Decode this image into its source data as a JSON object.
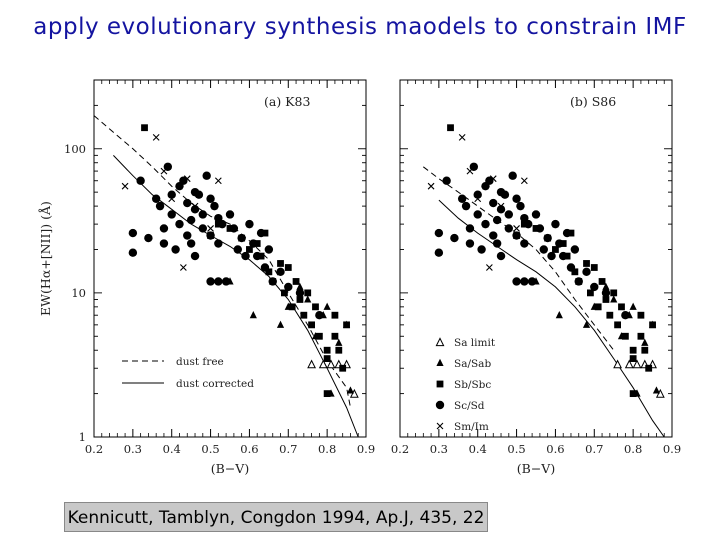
{
  "slide": {
    "title": "apply evolutionary synthesis maodels to constrain IMF",
    "citation": "Kennicutt, Tamblyn, Congdon 1994, Ap.J, 435, 22"
  },
  "chart_data": [
    {
      "type": "scatter",
      "panel_label": "(a)   K83",
      "xlabel": "(B−V)",
      "ylabel": "EW(Hα+[NII])  (Å)",
      "xlim": [
        0.2,
        0.9
      ],
      "ylim": [
        1,
        300
      ],
      "y_scale": "log",
      "x_ticks": [
        "0.2",
        "0.3",
        "0.4",
        "0.5",
        "0.6",
        "0.7",
        "0.8",
        "0.9"
      ],
      "y_ticks": [
        "1",
        "10",
        "100"
      ],
      "legend_entries": [
        "dust free",
        "dust corrected"
      ],
      "lines": [
        {
          "name": "dust free",
          "style": "dashed",
          "x": [
            0.2,
            0.25,
            0.3,
            0.35,
            0.4,
            0.45,
            0.5,
            0.55,
            0.6,
            0.65,
            0.7,
            0.75,
            0.8,
            0.85,
            0.86
          ],
          "y": [
            170,
            130,
            100,
            75,
            55,
            42,
            34,
            30,
            23,
            17,
            10,
            6,
            3.4,
            2.2,
            1.6
          ]
        },
        {
          "name": "dust corrected",
          "style": "solid",
          "x": [
            0.25,
            0.3,
            0.35,
            0.4,
            0.45,
            0.5,
            0.55,
            0.6,
            0.65,
            0.7,
            0.75,
            0.8,
            0.85,
            0.88
          ],
          "y": [
            90,
            65,
            48,
            38,
            30,
            25,
            21,
            17,
            13,
            9,
            5.5,
            3,
            1.6,
            1
          ]
        }
      ],
      "series": [
        {
          "name": "Sa limit",
          "marker": "open-triangle",
          "x": [
            0.76,
            0.79,
            0.81,
            0.83,
            0.85,
            0.87
          ],
          "y": [
            3.2,
            3.2,
            3.2,
            3.2,
            3.2,
            2.0
          ]
        },
        {
          "name": "Sa/Sab",
          "marker": "triangle",
          "x": [
            0.55,
            0.61,
            0.68,
            0.7,
            0.73,
            0.75,
            0.77,
            0.79,
            0.8,
            0.83,
            0.85,
            0.81,
            0.86
          ],
          "y": [
            12,
            7,
            6,
            8,
            11,
            9,
            5,
            7,
            8,
            4.5,
            6,
            2,
            2.1
          ]
        },
        {
          "name": "Sb/Sbc",
          "marker": "square",
          "x": [
            0.33,
            0.5,
            0.52,
            0.55,
            0.58,
            0.6,
            0.62,
            0.63,
            0.64,
            0.65,
            0.66,
            0.68,
            0.69,
            0.7,
            0.71,
            0.72,
            0.73,
            0.74,
            0.75,
            0.76,
            0.77,
            0.78,
            0.8,
            0.8,
            0.82,
            0.82,
            0.83,
            0.84,
            0.8,
            0.85
          ],
          "y": [
            140,
            25,
            30,
            28,
            24,
            20,
            22,
            18,
            26,
            14,
            12,
            16,
            10,
            15,
            8,
            12,
            9,
            7,
            10,
            6,
            8,
            5,
            4,
            3.5,
            7,
            5,
            4,
            3,
            2,
            6
          ]
        },
        {
          "name": "Sc/Sd",
          "marker": "circle",
          "x": [
            0.3,
            0.3,
            0.32,
            0.34,
            0.36,
            0.37,
            0.38,
            0.38,
            0.39,
            0.4,
            0.4,
            0.41,
            0.42,
            0.42,
            0.43,
            0.44,
            0.44,
            0.45,
            0.45,
            0.46,
            0.46,
            0.47,
            0.48,
            0.48,
            0.49,
            0.5,
            0.5,
            0.51,
            0.52,
            0.52,
            0.53,
            0.54,
            0.55,
            0.56,
            0.57,
            0.58,
            0.59,
            0.6,
            0.61,
            0.62,
            0.63,
            0.64,
            0.65,
            0.66,
            0.68,
            0.7,
            0.73,
            0.78,
            0.52,
            0.5,
            0.46
          ],
          "y": [
            19,
            26,
            60,
            24,
            45,
            40,
            28,
            22,
            75,
            48,
            35,
            20,
            55,
            30,
            60,
            25,
            42,
            32,
            22,
            38,
            18,
            48,
            28,
            35,
            65,
            45,
            25,
            40,
            33,
            22,
            30,
            12,
            35,
            28,
            20,
            24,
            18,
            30,
            22,
            18,
            26,
            15,
            20,
            12,
            14,
            11,
            10,
            7,
            12,
            12,
            50
          ]
        },
        {
          "name": "Sm/Im",
          "marker": "cross",
          "x": [
            0.28,
            0.36,
            0.38,
            0.43,
            0.4,
            0.44,
            0.46,
            0.52,
            0.5
          ],
          "y": [
            55,
            120,
            70,
            15,
            45,
            62,
            40,
            60,
            28
          ]
        }
      ]
    },
    {
      "type": "scatter",
      "panel_label": "(b)   S86",
      "xlabel": "(B−V)",
      "xlim": [
        0.2,
        0.9
      ],
      "ylim": [
        1,
        300
      ],
      "y_scale": "log",
      "x_ticks": [
        "0.2",
        "0.3",
        "0.4",
        "0.5",
        "0.6",
        "0.7",
        "0.8",
        "0.9"
      ],
      "legend_entries": [
        "Sa  limit",
        "Sa/Sab",
        "Sb/Sbc",
        "Sc/Sd",
        "Sm/Im"
      ],
      "lines": [
        {
          "name": "dust free",
          "style": "dashed",
          "x": [
            0.26,
            0.3,
            0.35,
            0.4,
            0.45,
            0.5,
            0.55,
            0.6,
            0.65,
            0.7,
            0.75
          ],
          "y": [
            75,
            62,
            50,
            40,
            32,
            26,
            20,
            14,
            9,
            6,
            4
          ]
        },
        {
          "name": "dust corrected",
          "style": "solid",
          "x": [
            0.3,
            0.35,
            0.4,
            0.45,
            0.5,
            0.55,
            0.6,
            0.65,
            0.7,
            0.75,
            0.8,
            0.85,
            0.88
          ],
          "y": [
            44,
            33,
            26,
            21,
            17,
            14,
            11,
            8,
            5.5,
            3.5,
            2.2,
            1.3,
            1
          ]
        }
      ],
      "series": [
        {
          "name": "Sa  limit",
          "marker": "open-triangle",
          "x": [
            0.76,
            0.79,
            0.81,
            0.83,
            0.85,
            0.87
          ],
          "y": [
            3.2,
            3.2,
            3.2,
            3.2,
            3.2,
            2.0
          ]
        },
        {
          "name": "Sa/Sab",
          "marker": "triangle",
          "x": [
            0.55,
            0.61,
            0.68,
            0.7,
            0.73,
            0.75,
            0.77,
            0.79,
            0.8,
            0.83,
            0.85,
            0.81,
            0.86
          ],
          "y": [
            12,
            7,
            6,
            8,
            11,
            9,
            5,
            7,
            8,
            4.5,
            6,
            2,
            2.1
          ]
        },
        {
          "name": "Sb/Sbc",
          "marker": "square",
          "x": [
            0.33,
            0.5,
            0.52,
            0.55,
            0.58,
            0.6,
            0.62,
            0.63,
            0.64,
            0.65,
            0.66,
            0.68,
            0.69,
            0.7,
            0.71,
            0.72,
            0.73,
            0.74,
            0.75,
            0.76,
            0.77,
            0.78,
            0.8,
            0.8,
            0.82,
            0.82,
            0.83,
            0.84,
            0.8,
            0.85
          ],
          "y": [
            140,
            25,
            30,
            28,
            24,
            20,
            22,
            18,
            26,
            14,
            12,
            16,
            10,
            15,
            8,
            12,
            9,
            7,
            10,
            6,
            8,
            5,
            4,
            3.5,
            7,
            5,
            4,
            3,
            2,
            6
          ]
        },
        {
          "name": "Sc/Sd",
          "marker": "circle",
          "x": [
            0.3,
            0.3,
            0.32,
            0.34,
            0.36,
            0.37,
            0.38,
            0.38,
            0.39,
            0.4,
            0.4,
            0.41,
            0.42,
            0.42,
            0.43,
            0.44,
            0.44,
            0.45,
            0.45,
            0.46,
            0.46,
            0.47,
            0.48,
            0.48,
            0.49,
            0.5,
            0.5,
            0.51,
            0.52,
            0.52,
            0.53,
            0.54,
            0.55,
            0.56,
            0.57,
            0.58,
            0.59,
            0.6,
            0.61,
            0.62,
            0.63,
            0.64,
            0.65,
            0.66,
            0.68,
            0.7,
            0.73,
            0.78,
            0.52,
            0.5,
            0.46
          ],
          "y": [
            19,
            26,
            60,
            24,
            45,
            40,
            28,
            22,
            75,
            48,
            35,
            20,
            55,
            30,
            60,
            25,
            42,
            32,
            22,
            38,
            18,
            48,
            28,
            35,
            65,
            45,
            25,
            40,
            33,
            22,
            30,
            12,
            35,
            28,
            20,
            24,
            18,
            30,
            22,
            18,
            26,
            15,
            20,
            12,
            14,
            11,
            10,
            7,
            12,
            12,
            50
          ]
        },
        {
          "name": "Sm/Im",
          "marker": "cross",
          "x": [
            0.28,
            0.36,
            0.38,
            0.43,
            0.4,
            0.44,
            0.46,
            0.52,
            0.5
          ],
          "y": [
            55,
            120,
            70,
            15,
            45,
            62,
            40,
            60,
            28
          ]
        }
      ]
    }
  ]
}
